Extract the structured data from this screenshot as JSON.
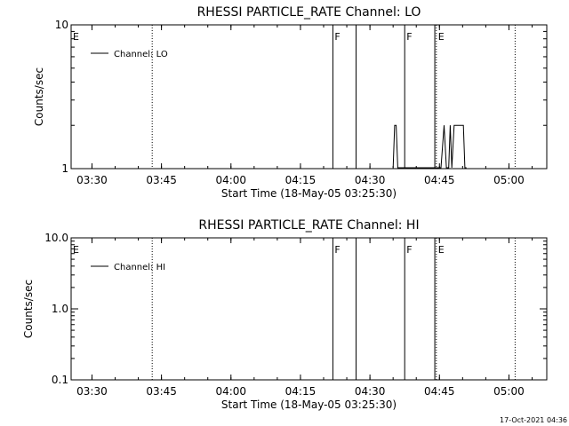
{
  "footer_timestamp": "17-Oct-2021 04:36",
  "chart_data": [
    {
      "type": "line",
      "title": "RHESSI PARTICLE_RATE Channel: LO",
      "xlabel": "Start Time (18-May-05 03:25:30)",
      "ylabel": "Counts/sec",
      "yscale": "log",
      "ylim": [
        1,
        10
      ],
      "yticks": [
        1,
        10
      ],
      "ytick_labels": [
        "1",
        "10"
      ],
      "xlim": [
        "03:25:30",
        "05:08:10"
      ],
      "xtick_labels": [
        "03:30",
        "03:45",
        "04:00",
        "04:15",
        "04:30",
        "04:45",
        "05:00"
      ],
      "xticks": [
        "03:30",
        "03:45",
        "04:00",
        "04:15",
        "04:30",
        "04:45",
        "05:00"
      ],
      "series": [
        {
          "name": "Channel: LO",
          "x": [
            "04:35:00",
            "04:35:20",
            "04:35:40",
            "04:36:00",
            "04:36:20",
            "04:45:20",
            "04:46:00",
            "04:46:30",
            "04:47:00",
            "04:47:20",
            "04:47:40",
            "04:48:10",
            "04:48:40",
            "04:49:10",
            "04:49:40",
            "04:50:10",
            "04:50:30",
            "04:50:50"
          ],
          "y": [
            1,
            2,
            2,
            1,
            1,
            1,
            2,
            1,
            1,
            2,
            1,
            2,
            2,
            2,
            2,
            2,
            1,
            1
          ]
        }
      ],
      "vlines_solid": [
        "04:22:00",
        "04:27:00",
        "04:37:30",
        "04:44:00"
      ],
      "vlines_dotted": [
        "03:43:00",
        "04:44:20",
        "05:01:20"
      ],
      "flags": [
        {
          "text": "E",
          "x": "03:25:30"
        },
        {
          "text": "F",
          "x": "04:22:00"
        },
        {
          "text": "F",
          "x": "04:37:30"
        },
        {
          "text": "E",
          "x": "04:44:20"
        }
      ],
      "legend_position": "top-left",
      "grid": false
    },
    {
      "type": "line",
      "title": "RHESSI PARTICLE_RATE Channel: HI",
      "xlabel": "Start Time (18-May-05 03:25:30)",
      "ylabel": "Counts/sec",
      "yscale": "log",
      "ylim": [
        0.1,
        10
      ],
      "yticks": [
        0.1,
        1,
        10
      ],
      "ytick_labels": [
        "0.1",
        "1.0",
        "10.0"
      ],
      "xlim": [
        "03:25:30",
        "05:08:10"
      ],
      "xtick_labels": [
        "03:30",
        "03:45",
        "04:00",
        "04:15",
        "04:30",
        "04:45",
        "05:00"
      ],
      "xticks": [
        "03:30",
        "03:45",
        "04:00",
        "04:15",
        "04:30",
        "04:45",
        "05:00"
      ],
      "series": [
        {
          "name": "Channel: HI",
          "x": [],
          "y": []
        }
      ],
      "vlines_solid": [
        "04:22:00",
        "04:27:00",
        "04:37:30",
        "04:44:00"
      ],
      "vlines_dotted": [
        "03:43:00",
        "04:44:20",
        "05:01:20"
      ],
      "flags": [
        {
          "text": "E",
          "x": "03:25:30"
        },
        {
          "text": "F",
          "x": "04:22:00"
        },
        {
          "text": "F",
          "x": "04:37:30"
        },
        {
          "text": "E",
          "x": "04:44:20"
        }
      ],
      "legend_position": "top-left",
      "grid": false
    }
  ]
}
